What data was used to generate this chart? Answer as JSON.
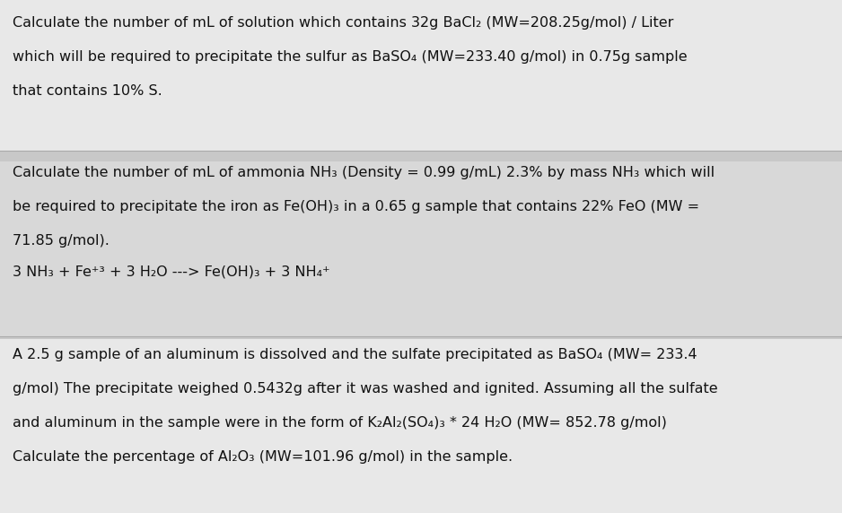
{
  "figsize": [
    9.38,
    5.72
  ],
  "dpi": 100,
  "bg_color": "#c8c8c8",
  "section_bg1": "#e8e8e8",
  "section_bg2": "#d8d8d8",
  "section_bg3": "#d8d8d8",
  "section_bg4": "#e8e8e8",
  "text_color": "#111111",
  "font_size": 11.5,
  "font_family": "DejaVu Sans",
  "paragraph1_lines": [
    "Calculate the number of mL of solution which contains 32g BaCl₂ (MW=208.25g/mol) / Liter",
    "which will be required to precipitate the sulfur as BaSO₄ (MW=233.40 g/mol) in 0.75g sample",
    "that contains 10% S."
  ],
  "paragraph2_lines": [
    "Calculate the number of mL of ammonia NH₃ (Density = 0.99 g/mL) 2.3% by mass NH₃ which will",
    "be required to precipitate the iron as Fe(OH)₃ in a 0.65 g sample that contains 22% FeO (MW =",
    "71.85 g/mol)."
  ],
  "paragraph3_lines": [
    "3 NH₃ + Fe⁺³ + 3 H₂O ---> Fe(OH)₃ + 3 NH₄⁺"
  ],
  "paragraph4_lines": [
    "A 2.5 g sample of an aluminum is dissolved and the sulfate precipitated as BaSO₄ (MW= 233.4",
    "g/mol) The precipitate weighed 0.5432g after it was washed and ignited. Assuming all the sulfate",
    "and aluminum in the sample were in the form of K₂Al₂(SO₄)₃ * 24 H₂O (MW= 852.78 g/mol)",
    "Calculate the percentage of Al₂O₃ (MW=101.96 g/mol) in the sample."
  ]
}
